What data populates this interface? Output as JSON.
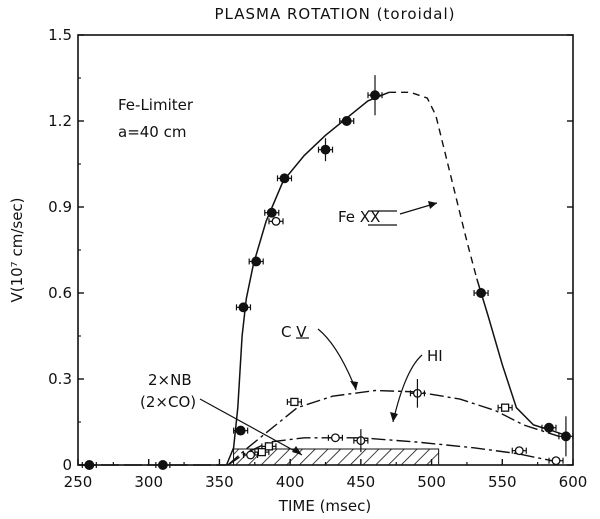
{
  "chart_data": {
    "type": "scatter",
    "title": "PLASMA ROTATION (toroidal)",
    "xlabel": "TIME (msec)",
    "ylabel": "V(10⁷ cm/sec)",
    "xlim": [
      250,
      600
    ],
    "ylim": [
      0,
      1.5
    ],
    "x_ticks": [
      "250",
      "300",
      "350",
      "400",
      "450",
      "500",
      "550",
      "600"
    ],
    "y_ticks": [
      "0",
      "0.3",
      "0.6",
      "0.9",
      "1.2",
      "1.5"
    ],
    "annotations": {
      "config_line1": "Fe-Limiter",
      "config_line2": "a=40 cm",
      "fe_label": "Fe XX",
      "cv_label": "C V",
      "hi_label": "HI",
      "nb_line1": "2×NB",
      "nb_line2": "(2×CO)"
    },
    "neutral_beam_interval": [
      360,
      505
    ],
    "series": [
      {
        "name": "Fe XX",
        "marker": "filled-circle",
        "x": [
          258,
          310,
          365,
          367,
          376,
          387,
          396,
          425,
          440,
          460,
          535,
          583,
          595
        ],
        "y": [
          0.0,
          0.0,
          0.12,
          0.55,
          0.71,
          0.88,
          1.0,
          1.1,
          1.2,
          1.29,
          0.6,
          0.13,
          0.1
        ]
      },
      {
        "name": "C V",
        "marker": "open-square",
        "x": [
          380,
          385,
          403,
          552
        ],
        "y": [
          0.045,
          0.065,
          0.22,
          0.2
        ]
      },
      {
        "name": "HI",
        "marker": "open-circle",
        "x": [
          372,
          390,
          432,
          450,
          490,
          562,
          588
        ],
        "y": [
          0.035,
          0.85,
          0.095,
          0.085,
          0.25,
          0.05,
          0.015
        ]
      }
    ]
  }
}
